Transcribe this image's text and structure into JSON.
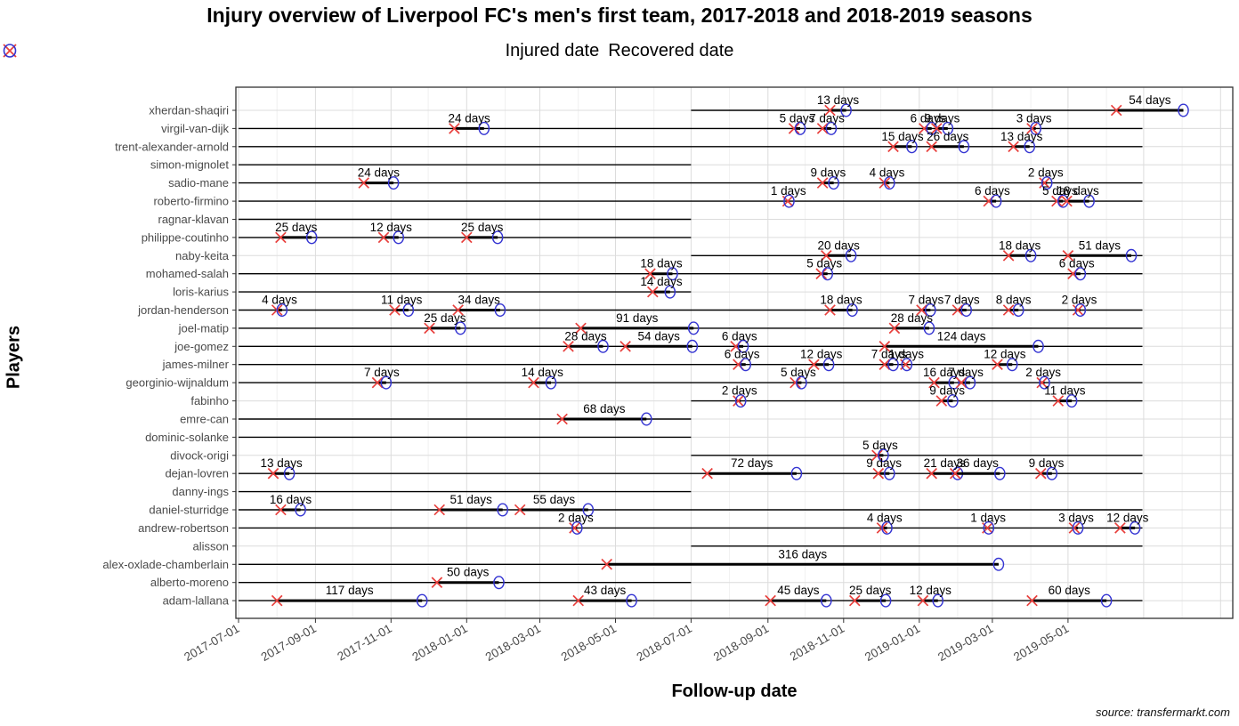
{
  "chart_data": {
    "type": "scatter",
    "title": "Injury overview of Liverpool FC's men's first team, 2017-2018 and 2018-2019 seasons",
    "xlabel": "Follow-up date",
    "ylabel": "Players",
    "source": "source: transfermarkt.com",
    "legend": [
      {
        "label": "Injured date",
        "marker": "cross",
        "color": "#e8403d"
      },
      {
        "label": "Recovered date",
        "marker": "circle",
        "color": "#3434d2"
      }
    ],
    "colors": {
      "injured": "#e8403d",
      "recovered": "#3434d2",
      "followup_line": "#000000",
      "grid_major": "#dcdcdc",
      "grid_minor": "#f0f0f0"
    },
    "x_domain": [
      "2017-06-28",
      "2019-09-12"
    ],
    "x_ticks": [
      "2017-07-01",
      "2017-09-01",
      "2017-11-01",
      "2018-01-01",
      "2018-03-01",
      "2018-05-01",
      "2018-07-01",
      "2018-09-01",
      "2018-11-01",
      "2019-01-01",
      "2019-03-01",
      "2019-05-01"
    ],
    "duration_label_suffix": " days",
    "players": [
      {
        "name": "xherdan-shaqiri",
        "follow_up": [
          [
            "2018-07-01",
            "2019-06-30"
          ]
        ],
        "injuries": [
          {
            "injured": "2018-10-21",
            "days": 13
          },
          {
            "injured": "2019-06-09",
            "days": 54
          }
        ]
      },
      {
        "name": "virgil-van-dijk",
        "follow_up": [
          [
            "2017-07-01",
            "2019-06-30"
          ]
        ],
        "injuries": [
          {
            "injured": "2017-12-22",
            "days": 24
          },
          {
            "injured": "2018-09-22",
            "days": 5
          },
          {
            "injured": "2018-10-15",
            "days": 7
          },
          {
            "injured": "2019-01-05",
            "days": 6
          },
          {
            "injured": "2019-01-15",
            "days": 9
          },
          {
            "injured": "2019-04-02",
            "days": 3
          }
        ]
      },
      {
        "name": "trent-alexander-arnold",
        "follow_up": [
          [
            "2017-07-01",
            "2019-06-30"
          ]
        ],
        "injuries": [
          {
            "injured": "2018-12-11",
            "days": 15
          },
          {
            "injured": "2019-01-11",
            "days": 26
          },
          {
            "injured": "2019-03-18",
            "days": 13
          }
        ]
      },
      {
        "name": "simon-mignolet",
        "follow_up": [
          [
            "2017-07-01",
            "2018-07-01"
          ]
        ],
        "injuries": []
      },
      {
        "name": "sadio-mane",
        "follow_up": [
          [
            "2017-07-01",
            "2019-06-30"
          ]
        ],
        "injuries": [
          {
            "injured": "2017-10-10",
            "days": 24
          },
          {
            "injured": "2018-10-15",
            "days": 9
          },
          {
            "injured": "2018-12-04",
            "days": 4
          },
          {
            "injured": "2019-04-12",
            "days": 2
          }
        ]
      },
      {
        "name": "roberto-firmino",
        "follow_up": [
          [
            "2017-07-01",
            "2019-06-30"
          ]
        ],
        "injuries": [
          {
            "injured": "2018-09-17",
            "days": 1
          },
          {
            "injured": "2019-02-26",
            "days": 6
          },
          {
            "injured": "2019-04-22",
            "days": 5
          },
          {
            "injured": "2019-04-30",
            "days": 18
          }
        ]
      },
      {
        "name": "ragnar-klavan",
        "follow_up": [
          [
            "2017-07-01",
            "2018-07-01"
          ]
        ],
        "injuries": []
      },
      {
        "name": "philippe-coutinho",
        "follow_up": [
          [
            "2017-07-01",
            "2018-07-01"
          ]
        ],
        "injuries": [
          {
            "injured": "2017-08-04",
            "days": 25
          },
          {
            "injured": "2017-10-26",
            "days": 12
          },
          {
            "injured": "2018-01-01",
            "days": 25
          }
        ]
      },
      {
        "name": "naby-keita",
        "follow_up": [
          [
            "2018-07-01",
            "2019-06-30"
          ]
        ],
        "injuries": [
          {
            "injured": "2018-10-18",
            "days": 20
          },
          {
            "injured": "2019-03-14",
            "days": 18
          },
          {
            "injured": "2019-05-01",
            "days": 51
          }
        ]
      },
      {
        "name": "mohamed-salah",
        "follow_up": [
          [
            "2017-07-01",
            "2019-06-30"
          ]
        ],
        "injuries": [
          {
            "injured": "2018-05-29",
            "days": 18
          },
          {
            "injured": "2018-10-14",
            "days": 5
          },
          {
            "injured": "2019-05-05",
            "days": 6
          }
        ]
      },
      {
        "name": "loris-karius",
        "follow_up": [
          [
            "2017-07-01",
            "2018-07-01"
          ]
        ],
        "injuries": [
          {
            "injured": "2018-05-31",
            "days": 14
          }
        ]
      },
      {
        "name": "jordan-henderson",
        "follow_up": [
          [
            "2017-07-01",
            "2019-06-30"
          ]
        ],
        "injuries": [
          {
            "injured": "2017-08-01",
            "days": 4
          },
          {
            "injured": "2017-11-04",
            "days": 11
          },
          {
            "injured": "2017-12-25",
            "days": 34
          },
          {
            "injured": "2018-10-21",
            "days": 18
          },
          {
            "injured": "2019-01-03",
            "days": 7
          },
          {
            "injured": "2019-02-01",
            "days": 7
          },
          {
            "injured": "2019-03-14",
            "days": 8
          },
          {
            "injured": "2019-05-09",
            "days": 2
          }
        ]
      },
      {
        "name": "joel-matip",
        "follow_up": [
          [
            "2017-07-01",
            "2019-06-30"
          ]
        ],
        "injuries": [
          {
            "injured": "2017-12-02",
            "days": 25
          },
          {
            "injured": "2018-04-03",
            "days": 91
          },
          {
            "injured": "2018-12-12",
            "days": 28
          }
        ]
      },
      {
        "name": "joe-gomez",
        "follow_up": [
          [
            "2017-07-01",
            "2019-06-30"
          ]
        ],
        "injuries": [
          {
            "injured": "2018-03-24",
            "days": 28
          },
          {
            "injured": "2018-05-09",
            "days": 54
          },
          {
            "injured": "2018-08-06",
            "days": 6
          },
          {
            "injured": "2018-12-04",
            "days": 124
          }
        ]
      },
      {
        "name": "james-milner",
        "follow_up": [
          [
            "2017-07-01",
            "2019-06-30"
          ]
        ],
        "injuries": [
          {
            "injured": "2018-08-08",
            "days": 6
          },
          {
            "injured": "2018-10-08",
            "days": 12
          },
          {
            "injured": "2018-12-04",
            "days": 7
          },
          {
            "injured": "2018-12-21",
            "days": 1
          },
          {
            "injured": "2019-03-05",
            "days": 12
          }
        ]
      },
      {
        "name": "georginio-wijnaldum",
        "follow_up": [
          [
            "2017-07-01",
            "2019-06-30"
          ]
        ],
        "injuries": [
          {
            "injured": "2017-10-21",
            "days": 7
          },
          {
            "injured": "2018-02-24",
            "days": 14
          },
          {
            "injured": "2018-09-23",
            "days": 5
          },
          {
            "injured": "2019-01-13",
            "days": 16
          },
          {
            "injured": "2019-02-04",
            "days": 7
          },
          {
            "injured": "2019-04-10",
            "days": 2
          }
        ]
      },
      {
        "name": "fabinho",
        "follow_up": [
          [
            "2018-07-01",
            "2019-06-30"
          ]
        ],
        "injuries": [
          {
            "injured": "2018-08-08",
            "days": 2
          },
          {
            "injured": "2019-01-19",
            "days": 9
          },
          {
            "injured": "2019-04-23",
            "days": 11
          }
        ]
      },
      {
        "name": "emre-can",
        "follow_up": [
          [
            "2017-07-01",
            "2018-07-01"
          ]
        ],
        "injuries": [
          {
            "injured": "2018-03-19",
            "days": 68
          }
        ]
      },
      {
        "name": "dominic-solanke",
        "follow_up": [
          [
            "2017-07-01",
            "2018-07-01"
          ]
        ],
        "injuries": []
      },
      {
        "name": "divock-origi",
        "follow_up": [
          [
            "2018-07-01",
            "2019-06-30"
          ]
        ],
        "injuries": [
          {
            "injured": "2018-11-28",
            "days": 5
          }
        ]
      },
      {
        "name": "dejan-lovren",
        "follow_up": [
          [
            "2017-07-01",
            "2019-06-30"
          ]
        ],
        "injuries": [
          {
            "injured": "2017-07-29",
            "days": 13
          },
          {
            "injured": "2018-07-14",
            "days": 72
          },
          {
            "injured": "2018-11-29",
            "days": 9
          },
          {
            "injured": "2019-01-11",
            "days": 21
          },
          {
            "injured": "2019-01-30",
            "days": 36
          },
          {
            "injured": "2019-04-09",
            "days": 9
          }
        ]
      },
      {
        "name": "danny-ings",
        "follow_up": [
          [
            "2017-07-01",
            "2018-07-01"
          ]
        ],
        "injuries": []
      },
      {
        "name": "daniel-sturridge",
        "follow_up": [
          [
            "2017-07-01",
            "2019-06-30"
          ]
        ],
        "injuries": [
          {
            "injured": "2017-08-04",
            "days": 16
          },
          {
            "injured": "2017-12-10",
            "days": 51
          },
          {
            "injured": "2018-02-13",
            "days": 55
          }
        ]
      },
      {
        "name": "andrew-robertson",
        "follow_up": [
          [
            "2017-07-01",
            "2019-06-30"
          ]
        ],
        "injuries": [
          {
            "injured": "2018-03-29",
            "days": 2
          },
          {
            "injured": "2018-12-02",
            "days": 4
          },
          {
            "injured": "2019-02-25",
            "days": 1
          },
          {
            "injured": "2019-05-06",
            "days": 3
          },
          {
            "injured": "2019-06-12",
            "days": 12
          }
        ]
      },
      {
        "name": "alisson",
        "follow_up": [
          [
            "2018-07-01",
            "2019-06-30"
          ]
        ],
        "injuries": []
      },
      {
        "name": "alex-oxlade-chamberlain",
        "follow_up": [
          [
            "2017-07-01",
            "2019-03-06"
          ]
        ],
        "injuries": [
          {
            "injured": "2018-04-24",
            "days": 316
          }
        ]
      },
      {
        "name": "alberto-moreno",
        "follow_up": [
          [
            "2017-07-01",
            "2018-07-01"
          ]
        ],
        "injuries": [
          {
            "injured": "2017-12-08",
            "days": 50
          }
        ]
      },
      {
        "name": "adam-lallana",
        "follow_up": [
          [
            "2017-07-01",
            "2019-06-30"
          ]
        ],
        "injuries": [
          {
            "injured": "2017-08-01",
            "days": 117
          },
          {
            "injured": "2018-04-01",
            "days": 43
          },
          {
            "injured": "2018-09-03",
            "days": 45
          },
          {
            "injured": "2018-11-10",
            "days": 25
          },
          {
            "injured": "2019-01-04",
            "days": 12
          },
          {
            "injured": "2019-04-02",
            "days": 60
          }
        ]
      }
    ]
  }
}
